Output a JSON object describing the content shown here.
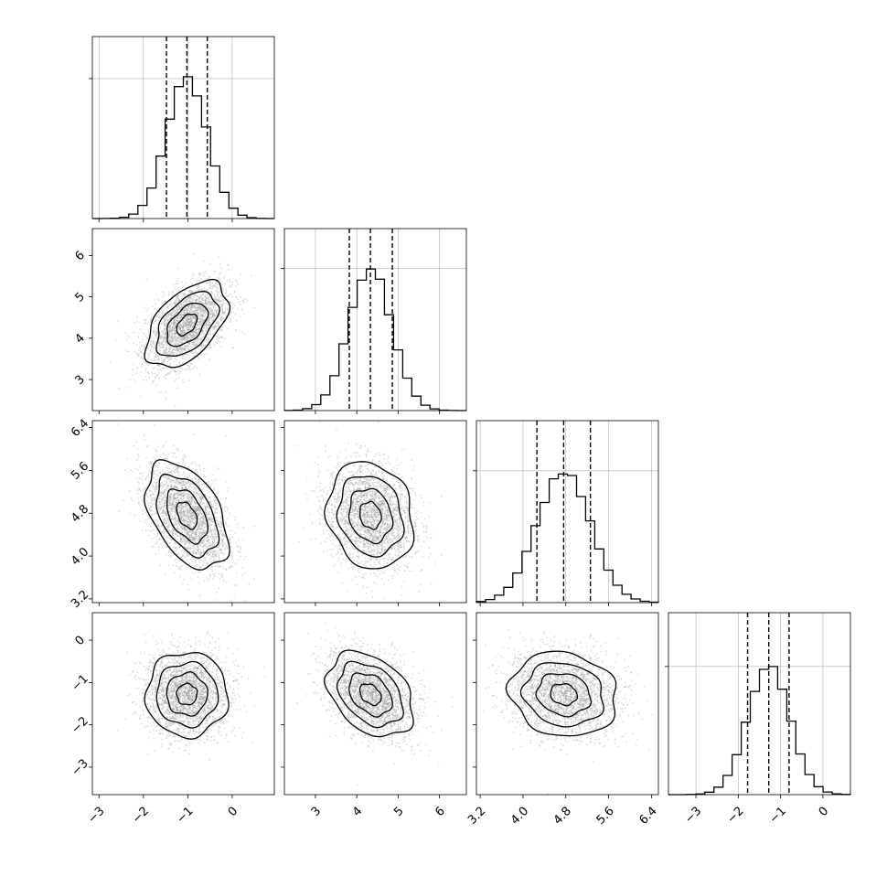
{
  "chart_data": {
    "type": "corner",
    "title": "",
    "parameters": 4,
    "colors": {
      "line": "#000000",
      "grid": "#b0b0b0",
      "background": "#ffffff",
      "samples": "#8c8c8c"
    },
    "grid": true,
    "variables": [
      {
        "index": 0,
        "range": [
          -3.15,
          0.95
        ],
        "ticks": [
          -3,
          -2,
          -1,
          0
        ],
        "tick_labels": [
          "−3",
          "−2",
          "−1",
          "0"
        ],
        "quantiles": [
          -1.48,
          -1.02,
          -0.56
        ],
        "mean": -1.02,
        "sd": 0.46,
        "hist_peak": 1.3
      },
      {
        "index": 1,
        "range": [
          2.25,
          6.65
        ],
        "ticks": [
          3,
          4,
          5,
          6
        ],
        "tick_labels": [
          "3",
          "4",
          "5",
          "6"
        ],
        "quantiles": [
          3.82,
          4.33,
          4.86
        ],
        "mean": 4.33,
        "sd": 0.52,
        "hist_peak": 1.28
      },
      {
        "index": 2,
        "range": [
          3.13,
          6.53
        ],
        "ticks": [
          3.2,
          4.0,
          4.8,
          5.6,
          6.4
        ],
        "tick_labels": [
          "3.2",
          "4.0",
          "4.8",
          "5.6",
          "6.4"
        ],
        "quantiles": [
          4.26,
          4.76,
          5.26
        ],
        "mean": 4.76,
        "sd": 0.5,
        "hist_peak": 1.38
      },
      {
        "index": 3,
        "range": [
          -3.65,
          0.65
        ],
        "ticks": [
          -3,
          -2,
          -1,
          0
        ],
        "tick_labels": [
          "−3",
          "−2",
          "−1",
          "0"
        ],
        "quantiles": [
          -1.78,
          -1.28,
          -0.8
        ],
        "mean": -1.28,
        "sd": 0.5,
        "hist_peak": 1.42
      }
    ],
    "pairs": [
      {
        "x": 0,
        "y": 1,
        "correlation": 0.5
      },
      {
        "x": 0,
        "y": 2,
        "correlation": -0.45
      },
      {
        "x": 1,
        "y": 2,
        "correlation": -0.15
      },
      {
        "x": 0,
        "y": 3,
        "correlation": 0.0
      },
      {
        "x": 1,
        "y": 3,
        "correlation": -0.35
      },
      {
        "x": 2,
        "y": 3,
        "correlation": -0.12
      }
    ]
  }
}
